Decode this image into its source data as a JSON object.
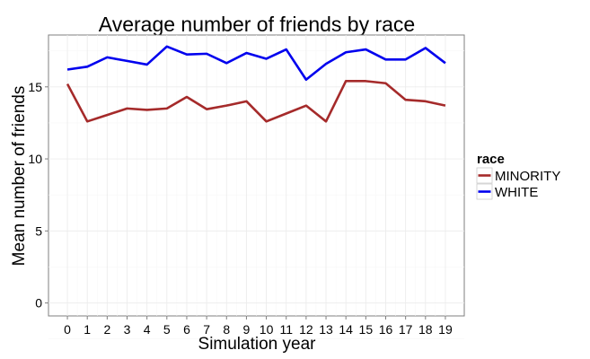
{
  "chart_data": {
    "type": "line",
    "title": "Average number of friends by race",
    "xlabel": "Simulation year",
    "ylabel": "Mean number of friends",
    "x": [
      0,
      1,
      2,
      3,
      4,
      5,
      6,
      7,
      8,
      9,
      10,
      11,
      12,
      13,
      14,
      15,
      16,
      17,
      18,
      19
    ],
    "x_ticks": [
      "0",
      "1",
      "2",
      "3",
      "4",
      "5",
      "6",
      "7",
      "8",
      "9",
      "10",
      "11",
      "12",
      "13",
      "14",
      "15",
      "16",
      "17",
      "18",
      "19"
    ],
    "y_ticks": [
      "0",
      "5",
      "10",
      "15"
    ],
    "xlim": [
      -0.95,
      19.95
    ],
    "ylim": [
      -0.9,
      18.6
    ],
    "grid": true,
    "legend": {
      "title": "race",
      "placement": "right"
    },
    "series": [
      {
        "name": "MINORITY",
        "color": "#a52a2a",
        "values": [
          15.2,
          12.6,
          13.05,
          13.5,
          13.4,
          13.5,
          14.3,
          13.45,
          13.7,
          14.0,
          12.6,
          13.15,
          13.7,
          12.6,
          15.4,
          15.4,
          15.25,
          14.1,
          14.0,
          13.7
        ]
      },
      {
        "name": "WHITE",
        "color": "#0000ee",
        "values": [
          16.2,
          16.4,
          17.05,
          16.8,
          16.55,
          17.8,
          17.25,
          17.3,
          16.65,
          17.35,
          16.95,
          17.6,
          15.5,
          16.6,
          17.4,
          17.6,
          16.9,
          16.9,
          17.7,
          16.65
        ]
      }
    ]
  }
}
